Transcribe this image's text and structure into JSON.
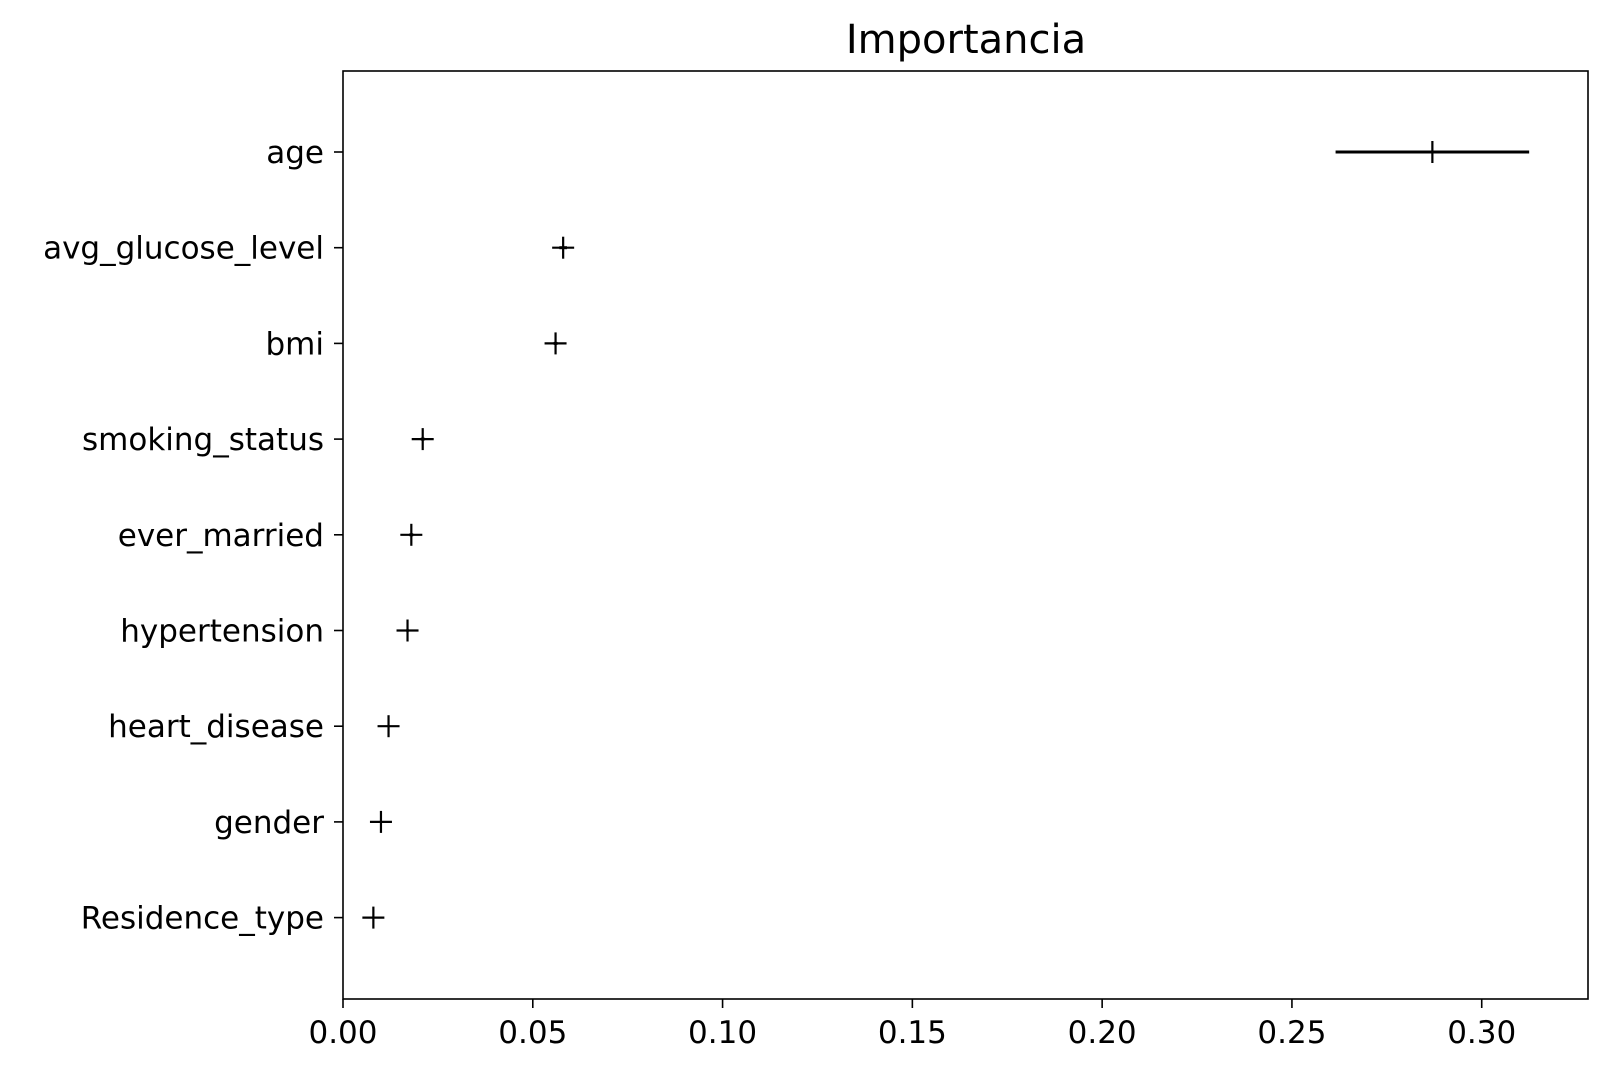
{
  "chart_data": {
    "type": "scatter",
    "title": "Importancia",
    "xlabel": "",
    "ylabel": "",
    "xlim": [
      0.0,
      0.328
    ],
    "xticks": [
      "0.00",
      "0.05",
      "0.10",
      "0.15",
      "0.20",
      "0.25",
      "0.30"
    ],
    "grid": false,
    "marker": "+",
    "marker_color": "#000000",
    "categories": [
      "age",
      "avg_glucose_level",
      "bmi",
      "smoking_status",
      "ever_married",
      "hypertension",
      "heart_disease",
      "gender",
      "Residence_type"
    ],
    "values": [
      0.287,
      0.058,
      0.056,
      0.021,
      0.018,
      0.017,
      0.012,
      0.01,
      0.008
    ],
    "errors_low": [
      0.0255,
      0.001,
      0.0005,
      0.0005,
      0.0005,
      0.0003,
      0.0002,
      0.0002,
      0.0002
    ],
    "errors_high": [
      0.0255,
      0.001,
      0.0005,
      0.0005,
      0.0005,
      0.0003,
      0.0002,
      0.0002,
      0.0002
    ]
  }
}
